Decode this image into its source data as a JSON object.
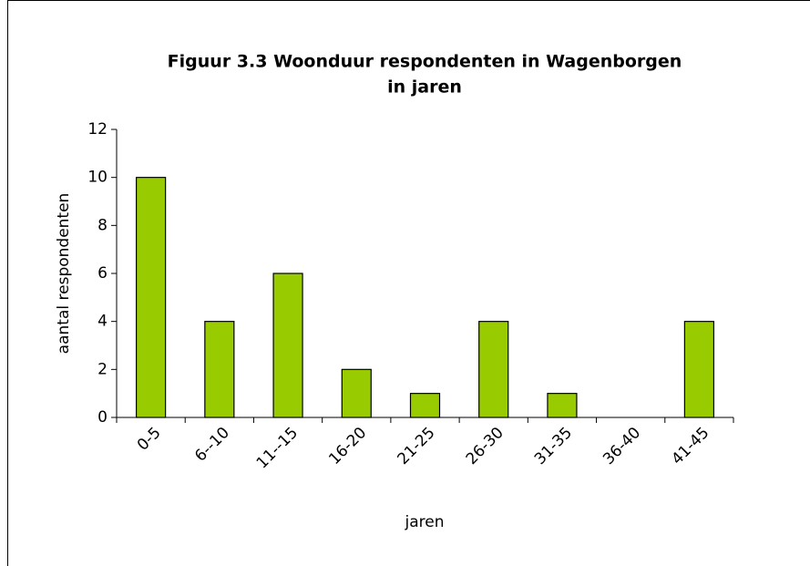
{
  "chart_data": {
    "type": "bar",
    "title": [
      "Figuur 3.3 Woonduur respondenten in Wagenborgen",
      "in jaren"
    ],
    "x_label": "jaren",
    "y_label": "aantal respondenten",
    "categories": [
      "0-5",
      "6--10",
      "11--15",
      "16-20",
      "21-25",
      "26-30",
      "31-35",
      "36-40",
      "41-45"
    ],
    "values": [
      10,
      4,
      6,
      2,
      1,
      4,
      1,
      0,
      4
    ],
    "color": "#99cc00",
    "ylim": [
      0,
      12
    ],
    "yticks": [
      0,
      2,
      4,
      6,
      8,
      10,
      12
    ],
    "grid": false
  }
}
